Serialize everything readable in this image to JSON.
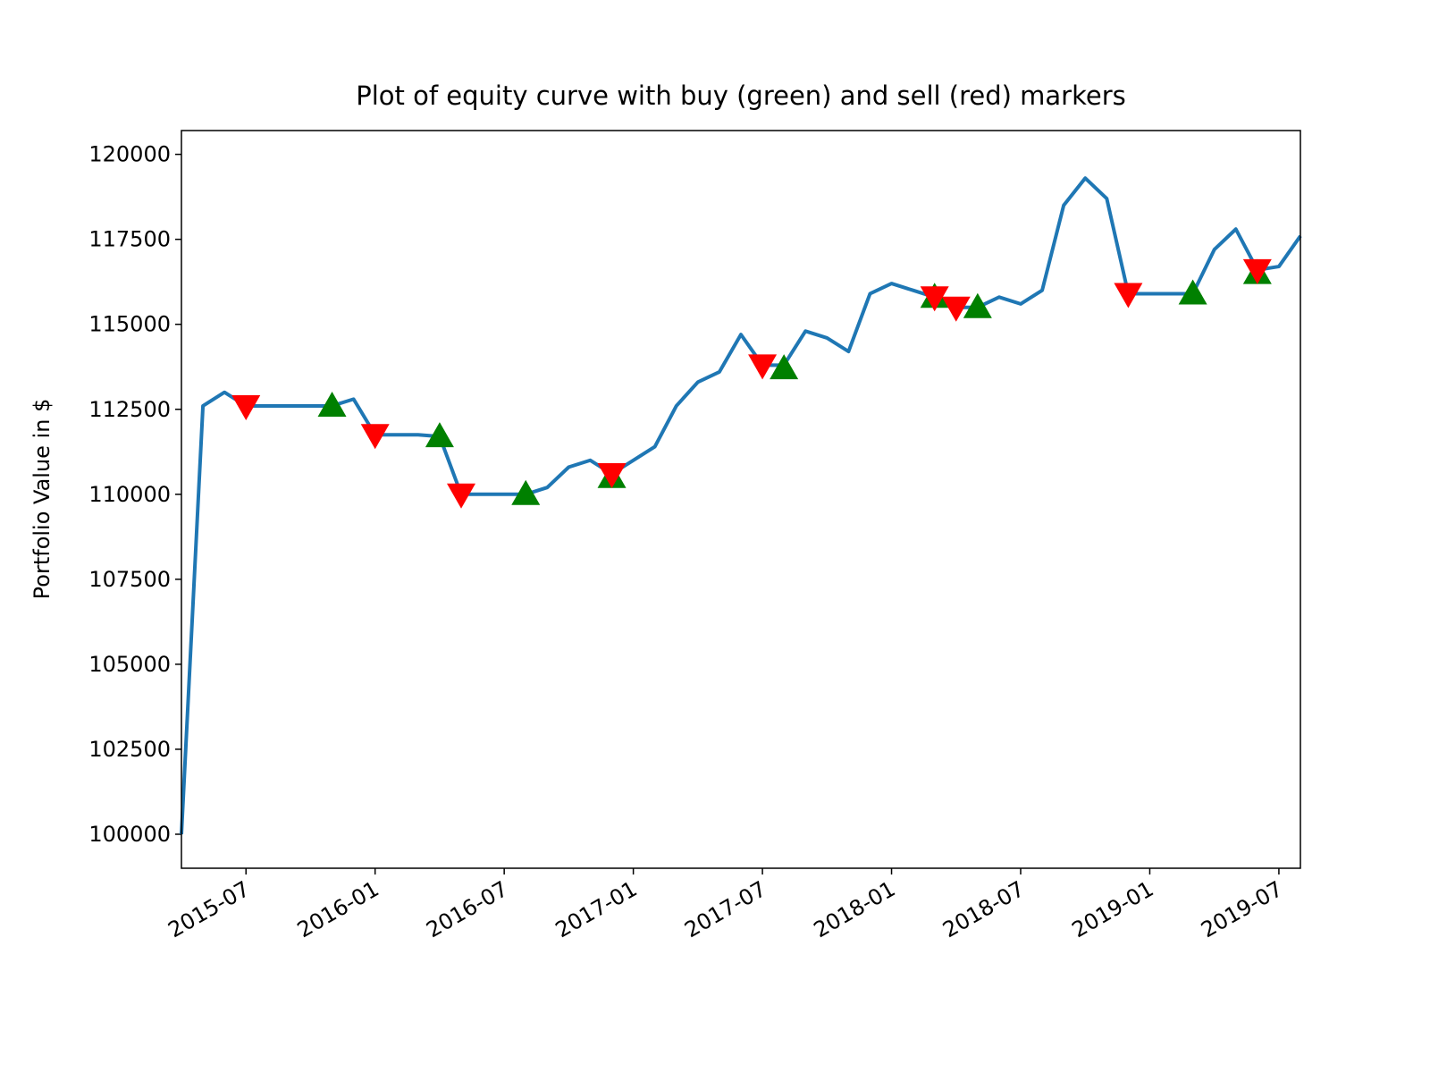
{
  "chart_data": {
    "type": "line",
    "title": "Plot of equity curve with buy (green) and sell (red) markers",
    "y_label": "Portfolio Value in $",
    "xlim": [
      "2015-04",
      "2019-08"
    ],
    "xticks": [
      "2015-07",
      "2016-01",
      "2016-07",
      "2017-01",
      "2017-07",
      "2018-01",
      "2018-07",
      "2019-01",
      "2019-07"
    ],
    "ylim": [
      99000,
      120700
    ],
    "yticks": [
      100000,
      102500,
      105000,
      107500,
      110000,
      112500,
      115000,
      117500,
      120000
    ],
    "grid": false,
    "series": [
      {
        "color": "#1f77b4",
        "marker": "none",
        "x": [
          "2015-04",
          "2015-05",
          "2015-06",
          "2015-07",
          "2015-08",
          "2015-09",
          "2015-10",
          "2015-11",
          "2015-12",
          "2016-01",
          "2016-02",
          "2016-03",
          "2016-04",
          "2016-05",
          "2016-06",
          "2016-07",
          "2016-08",
          "2016-09",
          "2016-10",
          "2016-11",
          "2016-12",
          "2017-01",
          "2017-02",
          "2017-03",
          "2017-04",
          "2017-05",
          "2017-06",
          "2017-07",
          "2017-08",
          "2017-09",
          "2017-10",
          "2017-11",
          "2017-12",
          "2018-01",
          "2018-02",
          "2018-03",
          "2018-04",
          "2018-05",
          "2018-06",
          "2018-07",
          "2018-08",
          "2018-09",
          "2018-10",
          "2018-11",
          "2018-12",
          "2019-01",
          "2019-02",
          "2019-03",
          "2019-04",
          "2019-05",
          "2019-06",
          "2019-07",
          "2019-08"
        ],
        "values": [
          100000,
          112600,
          113000,
          112600,
          112600,
          112600,
          112600,
          112600,
          112800,
          111750,
          111750,
          111750,
          111700,
          110000,
          110000,
          110000,
          110000,
          110200,
          110800,
          111000,
          110600,
          111000,
          111400,
          112600,
          113300,
          113600,
          114700,
          113800,
          113800,
          114800,
          114600,
          114200,
          115900,
          116200,
          116000,
          115800,
          115500,
          115500,
          115800,
          115600,
          116000,
          118500,
          119300,
          118700,
          115900,
          115900,
          115900,
          115900,
          117200,
          117800,
          116600,
          116700,
          117600
        ]
      },
      {
        "color": "green",
        "marker": "^",
        "x": [
          "2015-11",
          "2016-04",
          "2016-08",
          "2016-12",
          "2017-08",
          "2018-03",
          "2018-05",
          "2019-03",
          "2019-06"
        ],
        "values": [
          112600,
          111700,
          110000,
          110500,
          113700,
          115800,
          115500,
          115900,
          116500
        ]
      },
      {
        "color": "red",
        "marker": "v",
        "x": [
          "2015-07",
          "2016-01",
          "2016-05",
          "2016-12",
          "2017-07",
          "2018-03",
          "2018-04",
          "2018-12",
          "2019-06"
        ],
        "values": [
          112600,
          111750,
          110000,
          110600,
          113800,
          115800,
          115500,
          115900,
          116600
        ]
      }
    ]
  }
}
